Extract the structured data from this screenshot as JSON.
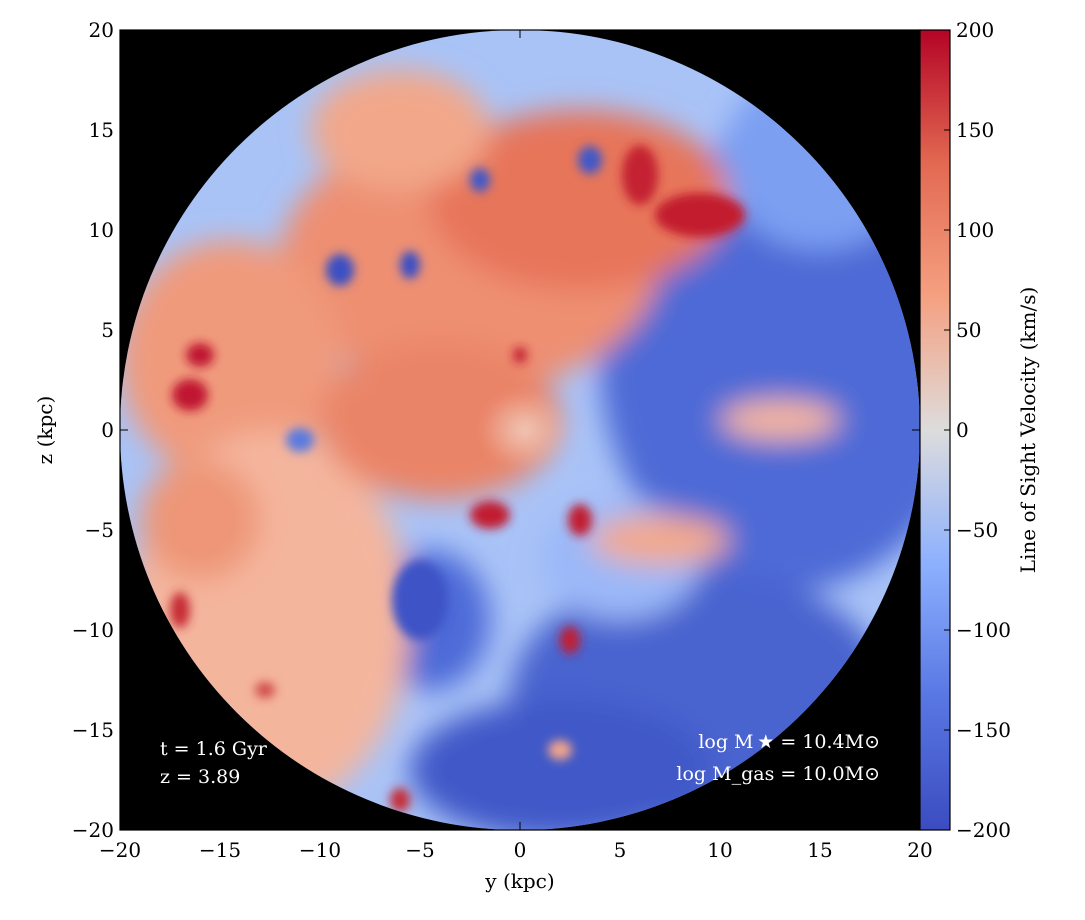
{
  "chart_data": {
    "type": "heatmap",
    "title": "",
    "xlabel": "y  (kpc)",
    "ylabel": "z  (kpc)",
    "xlim": [
      -20,
      20
    ],
    "ylim": [
      -20,
      20
    ],
    "x_ticks": [
      -20,
      -15,
      -10,
      -5,
      0,
      5,
      10,
      15,
      20
    ],
    "y_ticks": [
      -20,
      -15,
      -10,
      -5,
      0,
      5,
      10,
      15,
      20
    ],
    "x_tick_labels": [
      "−20",
      "−15",
      "−10",
      "−5",
      "0",
      "5",
      "10",
      "15",
      "20"
    ],
    "y_tick_labels": [
      "−20",
      "−15",
      "−10",
      "−5",
      "0",
      "5",
      "10",
      "15",
      "20"
    ],
    "background_color": "#000000",
    "colormap": "coolwarm",
    "colorbar": {
      "label": "Line of Sight Velocity  (km/s)",
      "range": [
        -200,
        200
      ],
      "ticks": [
        -200,
        -150,
        -100,
        -50,
        0,
        50,
        100,
        150,
        200
      ],
      "tick_labels": [
        "−200",
        "−150",
        "−100",
        "−50",
        "0",
        "50",
        "100",
        "150",
        "200"
      ],
      "colors": [
        "#3b4cc0",
        "#7396f5",
        "#b0cbfc",
        "#dcdddd",
        "#f6bfa6",
        "#ea7b60",
        "#b40426"
      ]
    },
    "disk_radius_kpc": 20,
    "features": [
      {
        "region": "upper-left disk",
        "velocity_sign": "positive (red)"
      },
      {
        "region": "right and lower-right disk",
        "velocity_sign": "negative (blue)"
      },
      {
        "region": "center",
        "velocity_sign": "mixed, turbulent"
      }
    ],
    "annotations": {
      "time": "t = 1.6 Gyr",
      "redshift": "z = 3.89",
      "stellar_mass": "log M ★ = 10.4M⊙",
      "gas_mass": "log M_gas = 10.0M⊙"
    }
  }
}
